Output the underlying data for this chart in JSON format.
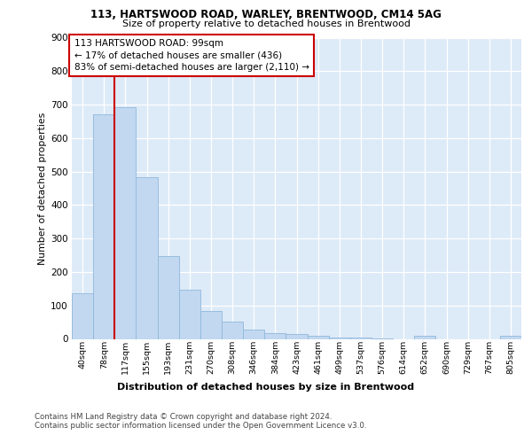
{
  "title1": "113, HARTSWOOD ROAD, WARLEY, BRENTWOOD, CM14 5AG",
  "title2": "Size of property relative to detached houses in Brentwood",
  "xlabel": "Distribution of detached houses by size in Brentwood",
  "ylabel": "Number of detached properties",
  "bar_labels": [
    "40sqm",
    "78sqm",
    "117sqm",
    "155sqm",
    "193sqm",
    "231sqm",
    "270sqm",
    "308sqm",
    "346sqm",
    "384sqm",
    "423sqm",
    "461sqm",
    "499sqm",
    "537sqm",
    "576sqm",
    "614sqm",
    "652sqm",
    "690sqm",
    "729sqm",
    "767sqm",
    "805sqm"
  ],
  "bar_values": [
    137,
    670,
    693,
    483,
    248,
    148,
    84,
    52,
    27,
    18,
    15,
    8,
    5,
    4,
    1,
    0,
    10,
    0,
    0,
    0,
    8
  ],
  "bar_color": "#c2d8f0",
  "bar_edge_color": "#8fb8dc",
  "vline_color": "#cc0000",
  "vline_xindex": 1.5,
  "annotation_text": "113 HARTSWOOD ROAD: 99sqm\n← 17% of detached houses are smaller (436)\n83% of semi-detached houses are larger (2,110) →",
  "annotation_box_facecolor": "#ffffff",
  "annotation_box_edgecolor": "#cc0000",
  "ylim": [
    0,
    900
  ],
  "yticks": [
    0,
    100,
    200,
    300,
    400,
    500,
    600,
    700,
    800,
    900
  ],
  "footer1": "Contains HM Land Registry data © Crown copyright and database right 2024.",
  "footer2": "Contains public sector information licensed under the Open Government Licence v3.0.",
  "bg_color": "#ddeaf7",
  "fig_bg": "#ffffff",
  "grid_color": "#ffffff"
}
